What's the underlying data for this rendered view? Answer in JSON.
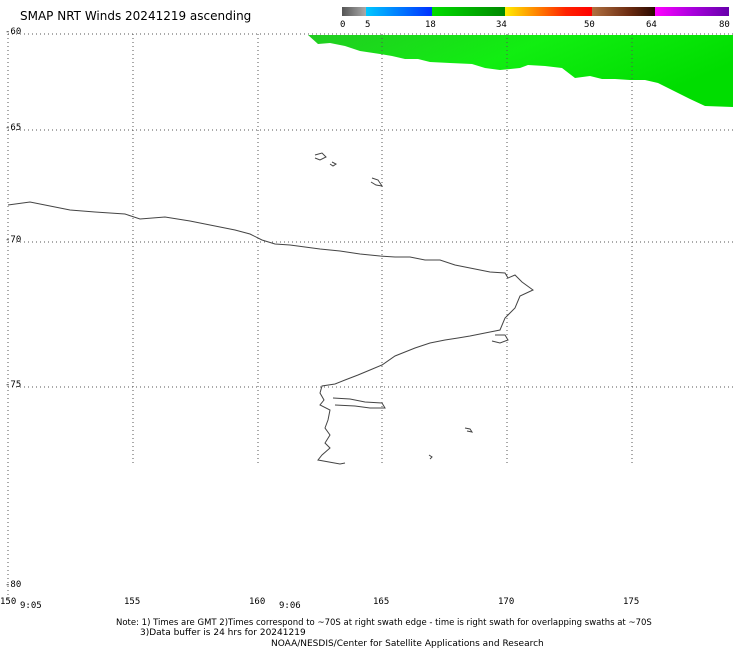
{
  "title": "SMAP NRT Winds 20241219 ascending",
  "color_scale": {
    "labels": [
      "0",
      "5",
      "18",
      "34",
      "50",
      "64",
      "80"
    ],
    "segments": [
      {
        "from": 0,
        "to": 5,
        "colors": [
          "#555555",
          "#999999"
        ]
      },
      {
        "from": 5,
        "to": 18,
        "colors": [
          "#00bfff",
          "#0040ff"
        ]
      },
      {
        "from": 18,
        "to": 34,
        "colors": [
          "#00dd00",
          "#008800"
        ]
      },
      {
        "from": 34,
        "to": 50,
        "colors": [
          "#ffee00",
          "#ff8800",
          "#ff2200",
          "#ff0000"
        ]
      },
      {
        "from": 50,
        "to": 64,
        "colors": [
          "#b07040",
          "#6a2a10",
          "#3a0a00"
        ]
      },
      {
        "from": 64,
        "to": 80,
        "colors": [
          "#ff00ff",
          "#9900cc",
          "#6600aa"
        ]
      }
    ]
  },
  "map": {
    "latitude_labels": [
      "-60",
      "-65",
      "-70",
      "-75",
      "-80"
    ],
    "longitude_labels": [
      "150",
      "155",
      "160",
      "165",
      "170",
      "175"
    ],
    "time_labels": [
      "9:05",
      "9:06"
    ],
    "wind_color": "#11dd11"
  },
  "notes": {
    "line1": "Note: 1) Times are GMT 2)Times correspond to ~70S at right swath edge - time is right swath for overlapping swaths at ~70S",
    "line2": "3)Data buffer is 24 hrs for 20241219",
    "line3": "NOAA/NESDIS/Center for Satellite Applications and Research"
  }
}
